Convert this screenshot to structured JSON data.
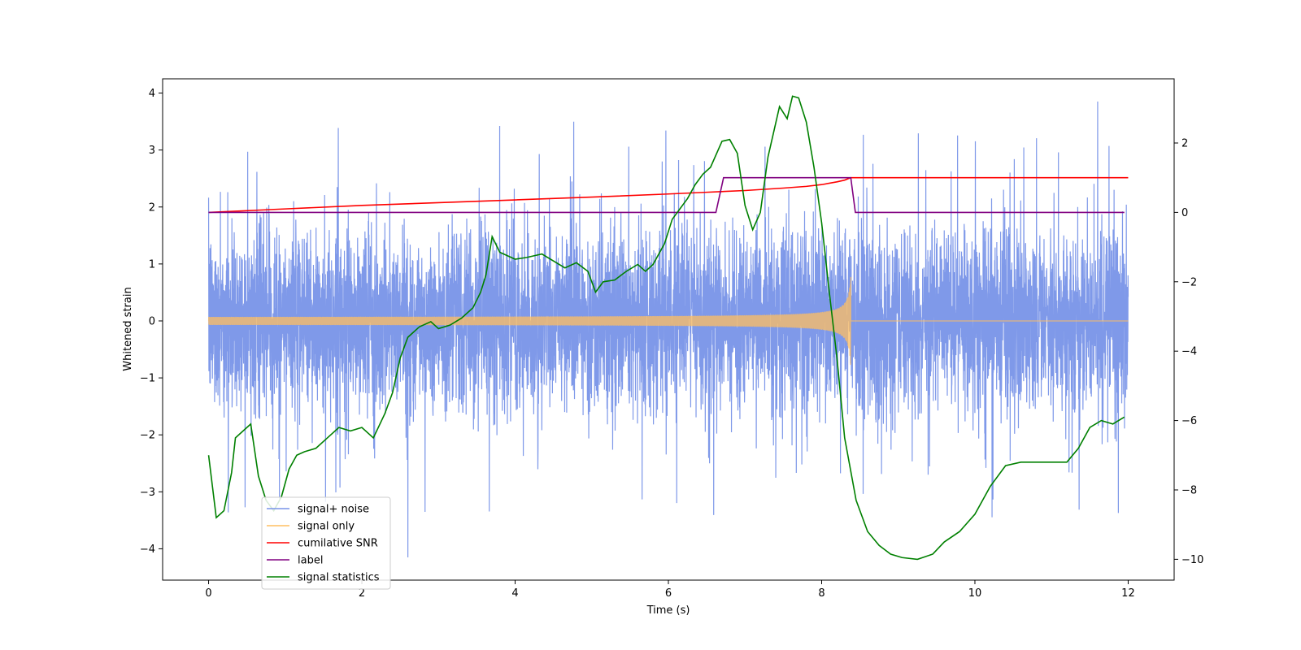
{
  "chart_data": {
    "type": "line",
    "xlabel": "Time (s)",
    "ylabel": "Whitened strain",
    "y2label": "",
    "xlim": [
      -0.6,
      12.6
    ],
    "ylim": [
      -4.55,
      4.25
    ],
    "y2lim": [
      -10.6,
      3.85
    ],
    "x_ticks": [
      0,
      2,
      4,
      6,
      8,
      10,
      12
    ],
    "y_ticks": [
      -4,
      -3,
      -2,
      -1,
      0,
      1,
      2,
      3,
      4
    ],
    "y2_ticks": [
      -10,
      -8,
      -6,
      -4,
      -2,
      0,
      2
    ],
    "legend_position": "lower-left",
    "series": [
      {
        "name": "signal+ noise",
        "axis": "left",
        "color": "#7893e8",
        "kind": "noise",
        "x_range": [
          0,
          12
        ],
        "base_sigma": 0.78,
        "peaks_max": 3.85,
        "peaks_min": -4.15,
        "note": "dense whitened noise around 0"
      },
      {
        "name": "signal only",
        "axis": "left",
        "color": "#ffbf60",
        "kind": "chirp",
        "x_range": [
          0,
          12
        ],
        "merger_time": 8.38,
        "amplitude_start": 0.06,
        "amplitude_peak": 0.85,
        "post_merger_amplitude": 0.0
      },
      {
        "name": "cumilative SNR",
        "axis": "right",
        "color": "#ff0000",
        "x": [
          0,
          1,
          2,
          3,
          4,
          5,
          6,
          6.5,
          7,
          7.5,
          7.8,
          8.0,
          8.2,
          8.3,
          8.38,
          8.45,
          12
        ],
        "values": [
          0.0,
          0.1,
          0.2,
          0.28,
          0.36,
          0.44,
          0.53,
          0.58,
          0.63,
          0.7,
          0.75,
          0.8,
          0.88,
          0.93,
          1.0,
          1.0,
          1.0
        ]
      },
      {
        "name": "label",
        "axis": "right",
        "color": "#800080",
        "x": [
          0,
          6.62,
          6.72,
          8.38,
          8.44,
          11.95
        ],
        "values": [
          0,
          0,
          1,
          1,
          0,
          0
        ]
      },
      {
        "name": "signal statistics",
        "axis": "right",
        "color": "#008000",
        "x": [
          0,
          0.1,
          0.2,
          0.3,
          0.35,
          0.45,
          0.55,
          0.65,
          0.75,
          0.85,
          0.95,
          1.05,
          1.15,
          1.25,
          1.4,
          1.55,
          1.7,
          1.85,
          2.0,
          2.15,
          2.3,
          2.4,
          2.5,
          2.6,
          2.75,
          2.9,
          3.0,
          3.15,
          3.3,
          3.45,
          3.55,
          3.62,
          3.7,
          3.8,
          4.0,
          4.15,
          4.35,
          4.5,
          4.65,
          4.8,
          4.95,
          5.05,
          5.15,
          5.3,
          5.45,
          5.6,
          5.7,
          5.8,
          5.95,
          6.05,
          6.15,
          6.25,
          6.35,
          6.45,
          6.55,
          6.7,
          6.8,
          6.9,
          7.0,
          7.1,
          7.2,
          7.3,
          7.45,
          7.55,
          7.62,
          7.7,
          7.8,
          7.9,
          8.0,
          8.1,
          8.2,
          8.3,
          8.45,
          8.6,
          8.75,
          8.9,
          9.05,
          9.25,
          9.45,
          9.6,
          9.8,
          10.0,
          10.2,
          10.4,
          10.6,
          10.8,
          11.0,
          11.2,
          11.35,
          11.5,
          11.65,
          11.8,
          11.95
        ],
        "values": [
          -7.0,
          -8.8,
          -8.6,
          -7.5,
          -6.5,
          -6.3,
          -6.1,
          -7.6,
          -8.3,
          -8.6,
          -8.2,
          -7.4,
          -7.0,
          -6.9,
          -6.8,
          -6.5,
          -6.2,
          -6.3,
          -6.2,
          -6.5,
          -5.8,
          -5.2,
          -4.2,
          -3.6,
          -3.3,
          -3.15,
          -3.35,
          -3.25,
          -3.05,
          -2.75,
          -2.3,
          -1.8,
          -0.7,
          -1.15,
          -1.35,
          -1.3,
          -1.2,
          -1.4,
          -1.6,
          -1.45,
          -1.7,
          -2.3,
          -2.0,
          -1.95,
          -1.7,
          -1.5,
          -1.7,
          -1.5,
          -0.9,
          -0.2,
          0.1,
          0.4,
          0.8,
          1.1,
          1.3,
          2.05,
          2.1,
          1.7,
          0.2,
          -0.5,
          0.0,
          1.6,
          3.05,
          2.7,
          3.35,
          3.3,
          2.6,
          1.3,
          -0.3,
          -2.3,
          -4.2,
          -6.5,
          -8.3,
          -9.2,
          -9.6,
          -9.85,
          -9.95,
          -10.0,
          -9.85,
          -9.5,
          -9.2,
          -8.7,
          -7.9,
          -7.3,
          -7.2,
          -7.2,
          -7.2,
          -7.2,
          -6.8,
          -6.2,
          -6.0,
          -6.1,
          -5.9
        ]
      }
    ]
  }
}
